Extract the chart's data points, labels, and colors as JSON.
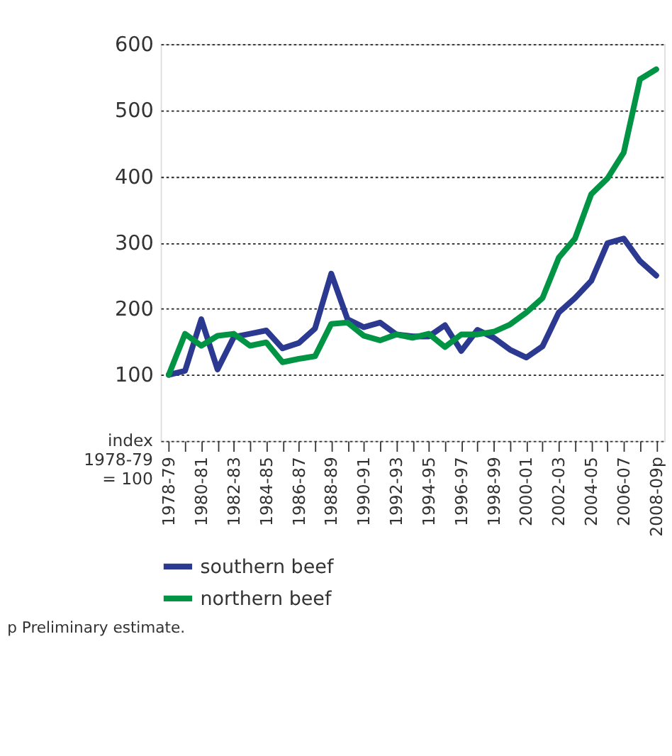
{
  "chart_data": {
    "type": "line",
    "ylabel": "index 1978-79 = 100",
    "categories": [
      "1978-79",
      null,
      "1980-81",
      null,
      "1982-83",
      null,
      "1984-85",
      null,
      "1986-87",
      null,
      "1988-89",
      null,
      "1990-91",
      null,
      "1992-93",
      null,
      "1994-95",
      null,
      "1996-97",
      null,
      "1998-99",
      null,
      "2000-01",
      null,
      "2002-03",
      null,
      "2004-05",
      null,
      "2006-07",
      null,
      "2008-09p"
    ],
    "series": [
      {
        "name": "southern beef",
        "color": "#2b3990",
        "values": [
          100,
          106,
          184,
          108,
          157,
          162,
          167,
          140,
          148,
          170,
          253,
          184,
          172,
          179,
          161,
          158,
          158,
          175,
          136,
          168,
          156,
          138,
          126,
          143,
          194,
          216,
          242,
          299,
          306,
          272,
          250
        ]
      },
      {
        "name": "northern beef",
        "color": "#009444",
        "values": [
          100,
          162,
          144,
          159,
          162,
          144,
          149,
          119,
          124,
          128,
          177,
          179,
          159,
          152,
          161,
          156,
          162,
          142,
          161,
          161,
          165,
          176,
          194,
          216,
          277,
          306,
          373,
          397,
          436,
          547,
          562
        ]
      }
    ],
    "ylim": [
      0,
      600
    ],
    "yticks": [
      100,
      200,
      300,
      400,
      500,
      600
    ],
    "grid": "y",
    "legend": "bottom",
    "line_style": "solid",
    "marker": "none",
    "annotations": [
      "p Preliminary estimate."
    ]
  }
}
